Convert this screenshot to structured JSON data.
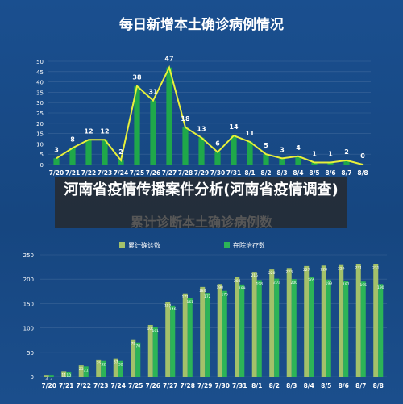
{
  "page": {
    "overlay_title": "河南省疫情传播案件分析(河南省疫情调查)"
  },
  "chart_data": [
    {
      "type": "line",
      "title": "每日新增本土确诊病例情况",
      "categories": [
        "7/20",
        "7/21",
        "7/22",
        "7/23",
        "7/24",
        "7/25",
        "7/26",
        "7/27",
        "7/28",
        "7/29",
        "7/30",
        "7/31",
        "8/1",
        "8/2",
        "8/3",
        "8/4",
        "8/5",
        "8/6",
        "8/7",
        "8/8"
      ],
      "values": [
        3,
        8,
        12,
        12,
        2,
        38,
        31,
        47,
        18,
        13,
        6,
        14,
        11,
        5,
        3,
        4,
        1,
        1,
        2,
        0
      ],
      "ylim": [
        0,
        50
      ],
      "yticks": [
        0,
        5,
        10,
        15,
        20,
        25,
        30,
        35,
        40,
        45,
        50
      ],
      "grid": true,
      "colors": {
        "bar": "#1fa84a",
        "line": "#e8f03a"
      }
    },
    {
      "type": "bar",
      "title": "累计诊断本土确诊病例数",
      "categories": [
        "7/20",
        "7/21",
        "7/22",
        "7/23",
        "7/24",
        "7/25",
        "7/26",
        "7/27",
        "7/28",
        "7/29",
        "7/30",
        "7/31",
        "8/1",
        "8/2",
        "8/3",
        "8/4",
        "8/5",
        "8/6",
        "8/7",
        "8/8"
      ],
      "series": [
        {
          "name": "累计确诊数",
          "values": [
            3,
            11,
            23,
            35,
            37,
            75,
            106,
            153,
            171,
            184,
            190,
            204,
            215,
            220,
            223,
            227,
            228,
            229,
            231,
            231
          ],
          "color": "#a3c16a"
        },
        {
          "name": "在院治疗数",
          "values": [
            3,
            10,
            21,
            32,
            32,
            70,
            101,
            146,
            161,
            172,
            176,
            189,
            198,
            201,
            200,
            205,
            199,
            197,
            195,
            190
          ],
          "color": "#2cb457"
        }
      ],
      "ylim": [
        0,
        250
      ],
      "yticks": [
        0,
        50,
        100,
        150,
        200,
        250
      ],
      "grid": true,
      "legend": "top"
    }
  ]
}
